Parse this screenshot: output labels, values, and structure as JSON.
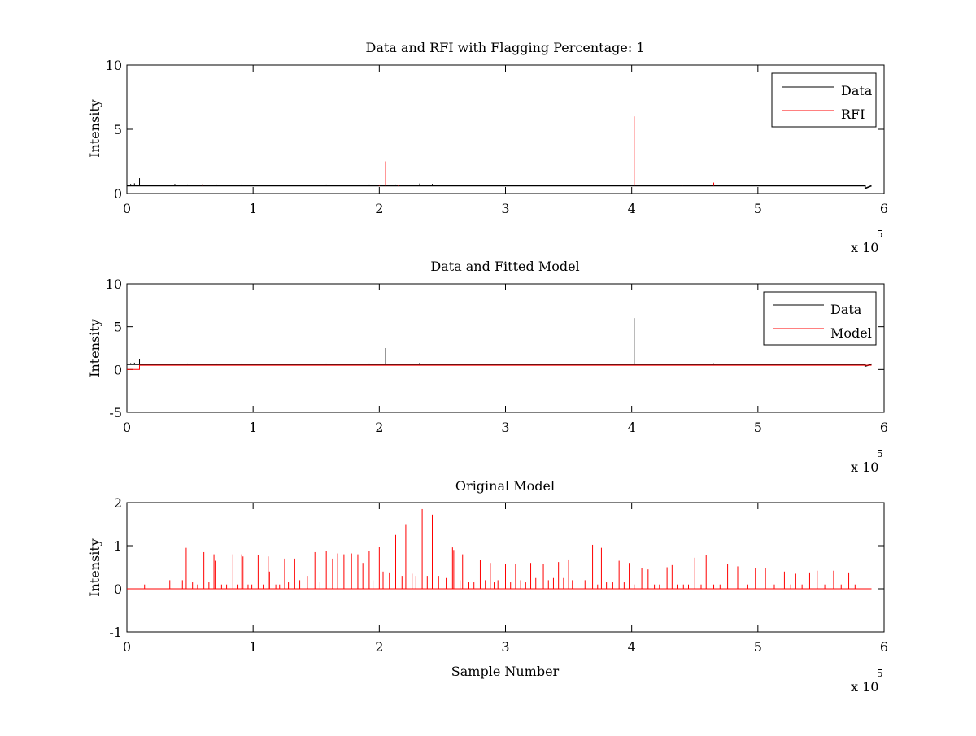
{
  "chart_data": [
    {
      "type": "line",
      "title": "Data and RFI with Flagging Percentage: 1",
      "xlabel": "",
      "ylabel": "Intensity",
      "xlim": [
        0,
        600000
      ],
      "ylim": [
        0,
        10
      ],
      "xticks": [
        0,
        1,
        2,
        3,
        4,
        5,
        6
      ],
      "yticks": [
        0,
        5,
        10
      ],
      "x_multiplier": "x 10",
      "x_multiplier_exp": "5",
      "grid": false,
      "legend": "top-right",
      "series": [
        {
          "name": "Data",
          "color": "#000000",
          "baseline": 0.6,
          "spikes": [
            [
              3000,
              0.75
            ],
            [
              6000,
              0.8
            ],
            [
              10000,
              1.2
            ],
            [
              12000,
              0.7
            ],
            [
              27000,
              0.65
            ],
            [
              38000,
              0.75
            ],
            [
              48000,
              0.7
            ],
            [
              60000,
              0.72
            ],
            [
              71000,
              0.7
            ],
            [
              82000,
              0.68
            ],
            [
              91000,
              0.7
            ],
            [
              103000,
              0.65
            ],
            [
              113000,
              0.68
            ],
            [
              124000,
              0.65
            ],
            [
              133000,
              0.66
            ],
            [
              158000,
              0.7
            ],
            [
              175000,
              0.68
            ],
            [
              192000,
              0.7
            ],
            [
              213000,
              0.7
            ],
            [
              232000,
              0.78
            ],
            [
              242000,
              0.75
            ],
            [
              268000,
              0.66
            ],
            [
              291000,
              0.66
            ],
            [
              330000,
              0.66
            ],
            [
              360000,
              0.66
            ],
            [
              380000,
              0.67
            ],
            [
              420000,
              0.65
            ],
            [
              465000,
              0.72
            ],
            [
              500000,
              0.66
            ],
            [
              540000,
              0.66
            ],
            [
              580000,
              0.65
            ]
          ],
          "end_dip": [
            [
              585000,
              0.4
            ],
            [
              590000,
              0.6
            ]
          ]
        },
        {
          "name": "RFI",
          "color": "#ff0000",
          "spikes": [
            [
              60000,
              0.7
            ],
            [
              200000,
              0.65
            ],
            [
              205000,
              2.5
            ],
            [
              215000,
              0.65
            ],
            [
              402000,
              6.0
            ],
            [
              440000,
              0.62
            ],
            [
              465000,
              0.85
            ]
          ]
        }
      ]
    },
    {
      "type": "line",
      "title": "Data and Fitted Model",
      "xlabel": "",
      "ylabel": "Intensity",
      "xlim": [
        0,
        600000
      ],
      "ylim": [
        -5,
        10
      ],
      "xticks": [
        0,
        1,
        2,
        3,
        4,
        5,
        6
      ],
      "yticks": [
        -5,
        0,
        5,
        10
      ],
      "x_multiplier": "x 10",
      "x_multiplier_exp": "5",
      "grid": false,
      "legend": "top-right",
      "series": [
        {
          "name": "Data",
          "color": "#000000",
          "baseline": 0.6,
          "spikes": [
            [
              3000,
              0.75
            ],
            [
              6000,
              0.8
            ],
            [
              10000,
              1.2
            ],
            [
              27000,
              0.65
            ],
            [
              48000,
              0.7
            ],
            [
              71000,
              0.7
            ],
            [
              91000,
              0.7
            ],
            [
              113000,
              0.68
            ],
            [
              133000,
              0.66
            ],
            [
              158000,
              0.7
            ],
            [
              192000,
              0.7
            ],
            [
              205000,
              2.5
            ],
            [
              232000,
              0.78
            ],
            [
              268000,
              0.66
            ],
            [
              330000,
              0.66
            ],
            [
              402000,
              6.0
            ],
            [
              465000,
              0.72
            ],
            [
              540000,
              0.66
            ],
            [
              590000,
              0.7
            ]
          ],
          "end_dip": [
            [
              585000,
              0.4
            ],
            [
              590000,
              0.6
            ]
          ]
        },
        {
          "name": "Model",
          "color": "#ff0000",
          "segments": [
            [
              0,
              0.0
            ],
            [
              10000,
              0.0
            ],
            [
              10000,
              0.5
            ],
            [
              590000,
              0.5
            ]
          ]
        }
      ]
    },
    {
      "type": "line",
      "title": "Original Model",
      "xlabel": "Sample Number",
      "ylabel": "Intensity",
      "xlim": [
        0,
        600000
      ],
      "ylim": [
        -1,
        2
      ],
      "xticks": [
        0,
        1,
        2,
        3,
        4,
        5,
        6
      ],
      "yticks": [
        -1,
        0,
        1,
        2
      ],
      "x_multiplier": "x 10",
      "x_multiplier_exp": "5",
      "grid": false,
      "legend": "none",
      "series": [
        {
          "color": "#ff0000",
          "baseline": 0.0,
          "x_end": 590000,
          "spikes": [
            [
              14000,
              0.1
            ],
            [
              34000,
              0.2
            ],
            [
              39000,
              1.02
            ],
            [
              44000,
              0.2
            ],
            [
              47000,
              0.95
            ],
            [
              52000,
              0.15
            ],
            [
              56000,
              0.1
            ],
            [
              61000,
              0.85
            ],
            [
              65000,
              0.15
            ],
            [
              69000,
              0.8
            ],
            [
              70000,
              0.65
            ],
            [
              75000,
              0.1
            ],
            [
              79000,
              0.1
            ],
            [
              84000,
              0.8
            ],
            [
              88000,
              0.1
            ],
            [
              91000,
              0.8
            ],
            [
              92000,
              0.75
            ],
            [
              96000,
              0.1
            ],
            [
              99000,
              0.1
            ],
            [
              104000,
              0.78
            ],
            [
              108000,
              0.1
            ],
            [
              112000,
              0.75
            ],
            [
              113000,
              0.4
            ],
            [
              118000,
              0.1
            ],
            [
              121000,
              0.1
            ],
            [
              125000,
              0.7
            ],
            [
              128000,
              0.15
            ],
            [
              133000,
              0.7
            ],
            [
              137000,
              0.2
            ],
            [
              143000,
              0.3
            ],
            [
              149000,
              0.85
            ],
            [
              153000,
              0.15
            ],
            [
              158000,
              0.88
            ],
            [
              163000,
              0.7
            ],
            [
              167000,
              0.82
            ],
            [
              172000,
              0.8
            ],
            [
              178000,
              0.82
            ],
            [
              183000,
              0.8
            ],
            [
              187000,
              0.6
            ],
            [
              192000,
              0.88
            ],
            [
              195000,
              0.2
            ],
            [
              200000,
              0.97
            ],
            [
              203000,
              0.4
            ],
            [
              208000,
              0.38
            ],
            [
              213000,
              1.25
            ],
            [
              218000,
              0.3
            ],
            [
              221000,
              1.5
            ],
            [
              226000,
              0.35
            ],
            [
              229000,
              0.3
            ],
            [
              234000,
              1.85
            ],
            [
              238000,
              0.3
            ],
            [
              242000,
              1.72
            ],
            [
              247000,
              0.3
            ],
            [
              253000,
              0.25
            ],
            [
              258000,
              0.96
            ],
            [
              259000,
              0.9
            ],
            [
              264000,
              0.2
            ],
            [
              266000,
              0.8
            ],
            [
              271000,
              0.15
            ],
            [
              275000,
              0.15
            ],
            [
              280000,
              0.67
            ],
            [
              284000,
              0.2
            ],
            [
              288000,
              0.6
            ],
            [
              291000,
              0.15
            ],
            [
              294000,
              0.2
            ],
            [
              300000,
              0.58
            ],
            [
              304000,
              0.15
            ],
            [
              308000,
              0.58
            ],
            [
              312000,
              0.2
            ],
            [
              316000,
              0.15
            ],
            [
              320000,
              0.6
            ],
            [
              324000,
              0.25
            ],
            [
              330000,
              0.58
            ],
            [
              334000,
              0.2
            ],
            [
              338000,
              0.25
            ],
            [
              342000,
              0.62
            ],
            [
              346000,
              0.25
            ],
            [
              350000,
              0.68
            ],
            [
              353000,
              0.2
            ],
            [
              363000,
              0.2
            ],
            [
              369000,
              1.02
            ],
            [
              373000,
              0.1
            ],
            [
              376000,
              0.95
            ],
            [
              380000,
              0.15
            ],
            [
              385000,
              0.15
            ],
            [
              390000,
              0.65
            ],
            [
              394000,
              0.15
            ],
            [
              398000,
              0.6
            ],
            [
              402000,
              0.1
            ],
            [
              408000,
              0.48
            ],
            [
              413000,
              0.45
            ],
            [
              418000,
              0.1
            ],
            [
              422000,
              0.1
            ],
            [
              428000,
              0.5
            ],
            [
              432000,
              0.55
            ],
            [
              436000,
              0.1
            ],
            [
              441000,
              0.1
            ],
            [
              445000,
              0.1
            ],
            [
              450000,
              0.72
            ],
            [
              455000,
              0.1
            ],
            [
              459000,
              0.78
            ],
            [
              465000,
              0.1
            ],
            [
              470000,
              0.1
            ],
            [
              476000,
              0.58
            ],
            [
              484000,
              0.52
            ],
            [
              492000,
              0.1
            ],
            [
              498000,
              0.48
            ],
            [
              506000,
              0.48
            ],
            [
              513000,
              0.1
            ],
            [
              521000,
              0.4
            ],
            [
              526000,
              0.1
            ],
            [
              530000,
              0.35
            ],
            [
              535000,
              0.1
            ],
            [
              541000,
              0.38
            ],
            [
              547000,
              0.42
            ],
            [
              553000,
              0.1
            ],
            [
              560000,
              0.42
            ],
            [
              566000,
              0.1
            ],
            [
              572000,
              0.38
            ],
            [
              577000,
              0.1
            ]
          ]
        }
      ]
    }
  ]
}
